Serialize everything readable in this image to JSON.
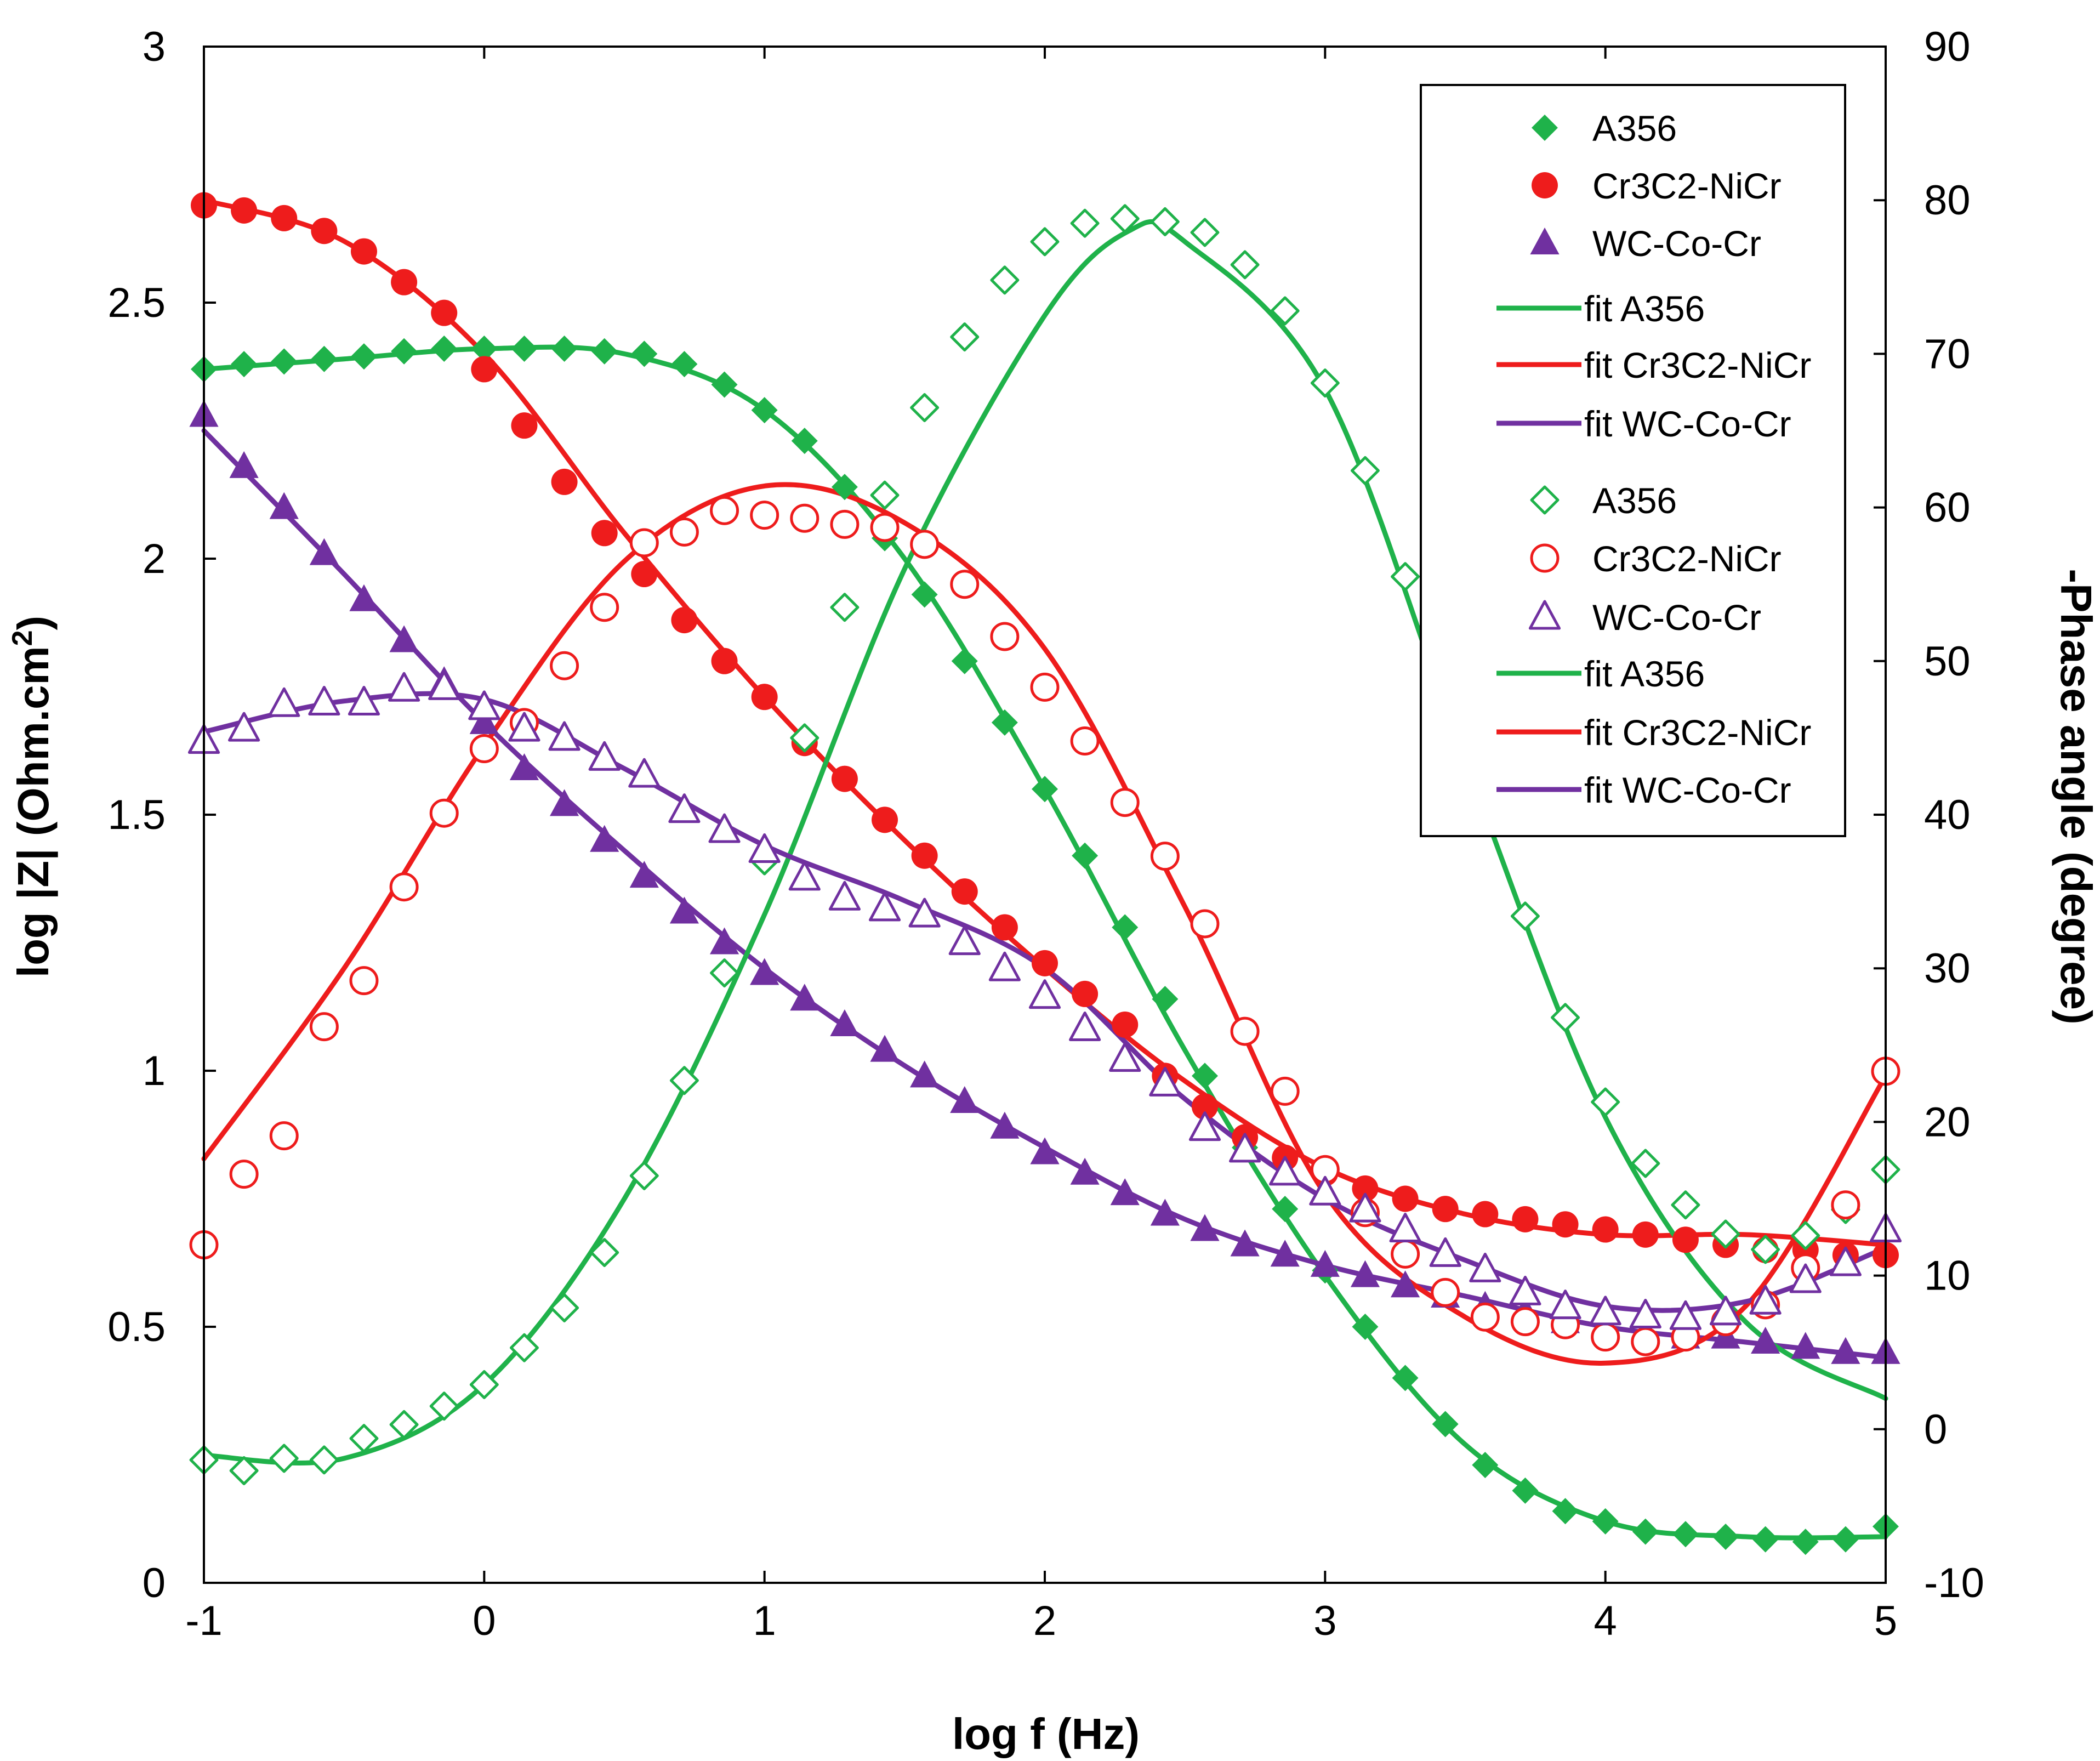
{
  "chart_data": {
    "type": "scatter",
    "xlabel": "log f (Hz)",
    "ylabel": "log |Z| (Ohm.cm²)",
    "ylabel_base": "log |Z| (Ohm.cm",
    "ylabel_sup": "2",
    "ylabel_end": ")",
    "y2label": "-Phase angle (degree)",
    "xlim": [
      -1,
      5
    ],
    "ylim": [
      0,
      3
    ],
    "y2lim": [
      -10,
      90
    ],
    "xticks": [
      -1,
      0,
      1,
      2,
      3,
      4,
      5
    ],
    "xtick_labels": [
      "-1",
      "0",
      "1",
      "2",
      "3",
      "4",
      "5"
    ],
    "yticks": [
      0,
      0.5,
      1,
      1.5,
      2,
      2.5,
      3
    ],
    "ytick_labels": [
      "0",
      "0.5",
      "1",
      "1.5",
      "2",
      "2.5",
      "3"
    ],
    "y2ticks": [
      -10,
      0,
      10,
      20,
      30,
      40,
      50,
      60,
      70,
      80,
      90
    ],
    "y2tick_labels": [
      "-10",
      "0",
      "10",
      "20",
      "30",
      "40",
      "50",
      "60",
      "70",
      "80",
      "90"
    ],
    "legend_position": "top-right",
    "colors": {
      "A356": "#1fb24a",
      "Cr3C2-NiCr": "#ee1c1c",
      "WC-Co-Cr": "#7030a0"
    },
    "series": [
      {
        "name": "A356",
        "label": "A356",
        "axis": "left",
        "marker": "diamond-filled",
        "color": "#1fb24a",
        "x": [
          -1.0,
          -0.857,
          -0.714,
          -0.571,
          -0.429,
          -0.286,
          -0.143,
          0.0,
          0.143,
          0.286,
          0.429,
          0.571,
          0.714,
          0.857,
          1.0,
          1.143,
          1.286,
          1.429,
          1.571,
          1.714,
          1.857,
          2.0,
          2.143,
          2.286,
          2.429,
          2.571,
          2.714,
          2.857,
          3.0,
          3.143,
          3.286,
          3.429,
          3.571,
          3.714,
          3.857,
          4.0,
          4.143,
          4.286,
          4.429,
          4.571,
          4.714,
          4.857,
          5.0
        ],
        "y": [
          2.37,
          2.38,
          2.385,
          2.39,
          2.395,
          2.405,
          2.41,
          2.41,
          2.41,
          2.41,
          2.405,
          2.4,
          2.38,
          2.34,
          2.29,
          2.23,
          2.14,
          2.04,
          1.93,
          1.8,
          1.68,
          1.55,
          1.42,
          1.28,
          1.14,
          0.99,
          0.85,
          0.73,
          0.61,
          0.5,
          0.4,
          0.31,
          0.23,
          0.18,
          0.14,
          0.12,
          0.1,
          0.095,
          0.09,
          0.085,
          0.08,
          0.085,
          0.11
        ]
      },
      {
        "name": "Cr3C2-NiCr",
        "label": "Cr3C2-NiCr",
        "axis": "left",
        "marker": "circle-filled",
        "color": "#ee1c1c",
        "x": [
          -1.0,
          -0.857,
          -0.714,
          -0.571,
          -0.429,
          -0.286,
          -0.143,
          0.0,
          0.143,
          0.286,
          0.429,
          0.571,
          0.714,
          0.857,
          1.0,
          1.143,
          1.286,
          1.429,
          1.571,
          1.714,
          1.857,
          2.0,
          2.143,
          2.286,
          2.429,
          2.571,
          2.714,
          2.857,
          3.0,
          3.143,
          3.286,
          3.429,
          3.571,
          3.714,
          3.857,
          4.0,
          4.143,
          4.286,
          4.429,
          4.571,
          4.714,
          4.857,
          5.0
        ],
        "y": [
          2.69,
          2.68,
          2.665,
          2.64,
          2.6,
          2.54,
          2.48,
          2.37,
          2.26,
          2.15,
          2.05,
          1.97,
          1.88,
          1.8,
          1.73,
          1.64,
          1.57,
          1.49,
          1.42,
          1.35,
          1.28,
          1.21,
          1.15,
          1.09,
          0.99,
          0.93,
          0.87,
          0.83,
          0.8,
          0.77,
          0.75,
          0.73,
          0.72,
          0.71,
          0.7,
          0.69,
          0.68,
          0.67,
          0.66,
          0.65,
          0.65,
          0.64,
          0.64
        ]
      },
      {
        "name": "WC-Co-Cr",
        "label": "WC-Co-Cr",
        "axis": "left",
        "marker": "triangle-filled",
        "color": "#7030a0",
        "x": [
          -1.0,
          -0.857,
          -0.714,
          -0.571,
          -0.429,
          -0.286,
          -0.143,
          0.0,
          0.143,
          0.286,
          0.429,
          0.571,
          0.714,
          0.857,
          1.0,
          1.143,
          1.286,
          1.429,
          1.571,
          1.714,
          1.857,
          2.0,
          2.143,
          2.286,
          2.429,
          2.571,
          2.714,
          2.857,
          3.0,
          3.143,
          3.286,
          3.429,
          3.571,
          3.714,
          3.857,
          4.0,
          4.143,
          4.286,
          4.429,
          4.571,
          4.714,
          4.857,
          5.0
        ],
        "y": [
          2.28,
          2.18,
          2.1,
          2.01,
          1.92,
          1.84,
          1.76,
          1.68,
          1.59,
          1.52,
          1.45,
          1.38,
          1.31,
          1.25,
          1.19,
          1.14,
          1.09,
          1.04,
          0.99,
          0.94,
          0.89,
          0.84,
          0.8,
          0.76,
          0.72,
          0.69,
          0.66,
          0.64,
          0.62,
          0.6,
          0.58,
          0.56,
          0.54,
          0.53,
          0.51,
          0.5,
          0.49,
          0.48,
          0.48,
          0.47,
          0.46,
          0.45,
          0.45
        ]
      },
      {
        "name": "fit A356",
        "label": "fit A356",
        "axis": "left",
        "marker": "line",
        "color": "#1fb24a",
        "x": [
          -1.0,
          -0.5,
          0.0,
          0.5,
          1.0,
          1.5,
          2.0,
          2.5,
          3.0,
          3.5,
          4.0,
          4.5,
          5.0
        ],
        "y": [
          2.37,
          2.39,
          2.41,
          2.4,
          2.29,
          2.0,
          1.55,
          1.04,
          0.6,
          0.27,
          0.12,
          0.09,
          0.09
        ]
      },
      {
        "name": "fit Cr3C2-NiCr",
        "label": "fit Cr3C2-NiCr",
        "axis": "left",
        "marker": "line",
        "color": "#ee1c1c",
        "x": [
          -1.0,
          -0.5,
          0.0,
          0.5,
          1.0,
          1.5,
          2.0,
          2.5,
          3.0,
          3.5,
          4.0,
          4.5,
          5.0
        ],
        "y": [
          2.7,
          2.62,
          2.4,
          2.05,
          1.73,
          1.45,
          1.2,
          0.98,
          0.81,
          0.72,
          0.68,
          0.68,
          0.66
        ]
      },
      {
        "name": "fit WC-Co-Cr",
        "label": "fit WC-Co-Cr",
        "axis": "left",
        "marker": "line",
        "color": "#7030a0",
        "x": [
          -1.0,
          -0.5,
          0.0,
          0.5,
          1.0,
          1.5,
          2.0,
          2.5,
          3.0,
          3.5,
          4.0,
          4.5,
          5.0
        ],
        "y": [
          2.25,
          1.97,
          1.68,
          1.43,
          1.2,
          1.01,
          0.85,
          0.71,
          0.62,
          0.56,
          0.5,
          0.47,
          0.44
        ]
      },
      {
        "name": "A356 phase",
        "label": "A356",
        "axis": "right",
        "marker": "diamond-open",
        "color": "#1fb24a",
        "x": [
          -1.0,
          -0.857,
          -0.714,
          -0.571,
          -0.429,
          -0.286,
          -0.143,
          0.0,
          0.143,
          0.286,
          0.429,
          0.571,
          0.714,
          0.857,
          1.0,
          1.143,
          1.286,
          1.429,
          1.571,
          1.714,
          1.857,
          2.0,
          2.143,
          2.286,
          2.429,
          2.571,
          2.714,
          2.857,
          3.0,
          3.143,
          3.286,
          3.429,
          3.571,
          3.714,
          3.857,
          4.0,
          4.143,
          4.286,
          4.429,
          4.571,
          4.714,
          4.857,
          5.0
        ],
        "y": [
          -2.0,
          -2.7,
          -1.9,
          -2.0,
          -0.6,
          0.3,
          1.5,
          2.9,
          5.3,
          7.9,
          11.5,
          16.5,
          22.7,
          29.7,
          37.0,
          45.0,
          53.5,
          60.8,
          66.5,
          71.1,
          74.8,
          77.3,
          78.5,
          78.8,
          78.6,
          77.9,
          75.8,
          72.8,
          68.1,
          62.4,
          55.5,
          48.4,
          41.0,
          33.4,
          26.8,
          21.3,
          17.3,
          14.6,
          12.7,
          11.7,
          12.6,
          14.3,
          16.9
        ]
      },
      {
        "name": "Cr3C2-NiCr phase",
        "label": "Cr3C2-NiCr",
        "axis": "right",
        "marker": "circle-open",
        "color": "#ee1c1c",
        "x": [
          -1.0,
          -0.857,
          -0.714,
          -0.571,
          -0.429,
          -0.286,
          -0.143,
          0.0,
          0.143,
          0.286,
          0.429,
          0.571,
          0.714,
          0.857,
          1.0,
          1.143,
          1.286,
          1.429,
          1.571,
          1.714,
          1.857,
          2.0,
          2.143,
          2.286,
          2.429,
          2.571,
          2.714,
          2.857,
          3.0,
          3.143,
          3.286,
          3.429,
          3.571,
          3.714,
          3.857,
          4.0,
          4.143,
          4.286,
          4.429,
          4.571,
          4.714,
          4.857,
          5.0
        ],
        "y": [
          12.0,
          16.6,
          19.1,
          26.2,
          29.2,
          35.3,
          40.1,
          44.3,
          46.0,
          49.7,
          53.5,
          57.7,
          58.4,
          59.8,
          59.5,
          59.3,
          58.9,
          58.7,
          57.6,
          55.0,
          51.6,
          48.3,
          44.8,
          40.8,
          37.3,
          32.9,
          25.9,
          22.0,
          16.9,
          14.1,
          11.4,
          8.9,
          7.3,
          7.0,
          6.8,
          6.0,
          5.7,
          6.0,
          7.0,
          8.1,
          10.5,
          14.6,
          23.3
        ]
      },
      {
        "name": "WC-Co-Cr phase",
        "label": "WC-Co-Cr",
        "axis": "right",
        "marker": "triangle-open",
        "color": "#7030a0",
        "x": [
          -1.0,
          -0.857,
          -0.714,
          -0.571,
          -0.429,
          -0.286,
          -0.143,
          0.0,
          0.143,
          0.286,
          0.429,
          0.571,
          0.714,
          0.857,
          1.0,
          1.143,
          1.286,
          1.429,
          1.571,
          1.714,
          1.857,
          2.0,
          2.143,
          2.286,
          2.429,
          2.571,
          2.714,
          2.857,
          3.0,
          3.143,
          3.286,
          3.429,
          3.571,
          3.714,
          3.857,
          4.0,
          4.143,
          4.286,
          4.429,
          4.571,
          4.714,
          4.857,
          5.0
        ],
        "y": [
          44.8,
          45.6,
          47.2,
          47.3,
          47.3,
          48.2,
          48.3,
          47.0,
          45.6,
          45.0,
          43.7,
          42.6,
          40.3,
          39.0,
          37.7,
          35.9,
          34.6,
          33.9,
          33.5,
          31.7,
          30.0,
          28.2,
          26.1,
          24.1,
          22.5,
          19.6,
          18.2,
          16.7,
          15.4,
          14.3,
          13.0,
          11.4,
          10.4,
          8.9,
          8.0,
          7.6,
          7.4,
          7.3,
          7.6,
          8.3,
          9.7,
          10.8,
          13.0
        ]
      },
      {
        "name": "fit A356 phase",
        "label": "fit A356",
        "axis": "right",
        "marker": "line",
        "color": "#1fb24a",
        "x": [
          -1.0,
          -0.5,
          0.0,
          0.5,
          1.0,
          1.5,
          2.0,
          2.3,
          2.5,
          3.0,
          3.5,
          4.0,
          4.5,
          5.0
        ],
        "y": [
          -1.7,
          -1.9,
          2.9,
          15.0,
          33.5,
          56.0,
          72.5,
          78.0,
          77.3,
          67.7,
          43.5,
          20.3,
          7.0,
          2.0
        ]
      },
      {
        "name": "fit Cr3C2-NiCr phase",
        "label": "fit Cr3C2-NiCr",
        "axis": "right",
        "marker": "line",
        "color": "#ee1c1c",
        "x": [
          -1.0,
          -0.5,
          0.0,
          0.5,
          1.0,
          1.5,
          2.0,
          2.5,
          3.0,
          3.5,
          4.0,
          4.5,
          5.0
        ],
        "y": [
          17.6,
          30.0,
          44.5,
          56.5,
          61.4,
          59.0,
          50.8,
          34.0,
          15.3,
          7.3,
          4.3,
          8.0,
          23.0
        ]
      },
      {
        "name": "fit WC-Co-Cr phase",
        "label": "fit WC-Co-Cr",
        "axis": "right",
        "marker": "line",
        "color": "#7030a0",
        "x": [
          -1.0,
          -0.5,
          0.0,
          0.5,
          1.0,
          1.5,
          2.0,
          2.5,
          3.0,
          3.5,
          4.0,
          4.5,
          5.0
        ],
        "y": [
          45.4,
          47.4,
          47.5,
          43.0,
          38.0,
          34.4,
          30.0,
          21.5,
          15.0,
          11.0,
          8.0,
          8.3,
          11.8
        ]
      }
    ]
  }
}
